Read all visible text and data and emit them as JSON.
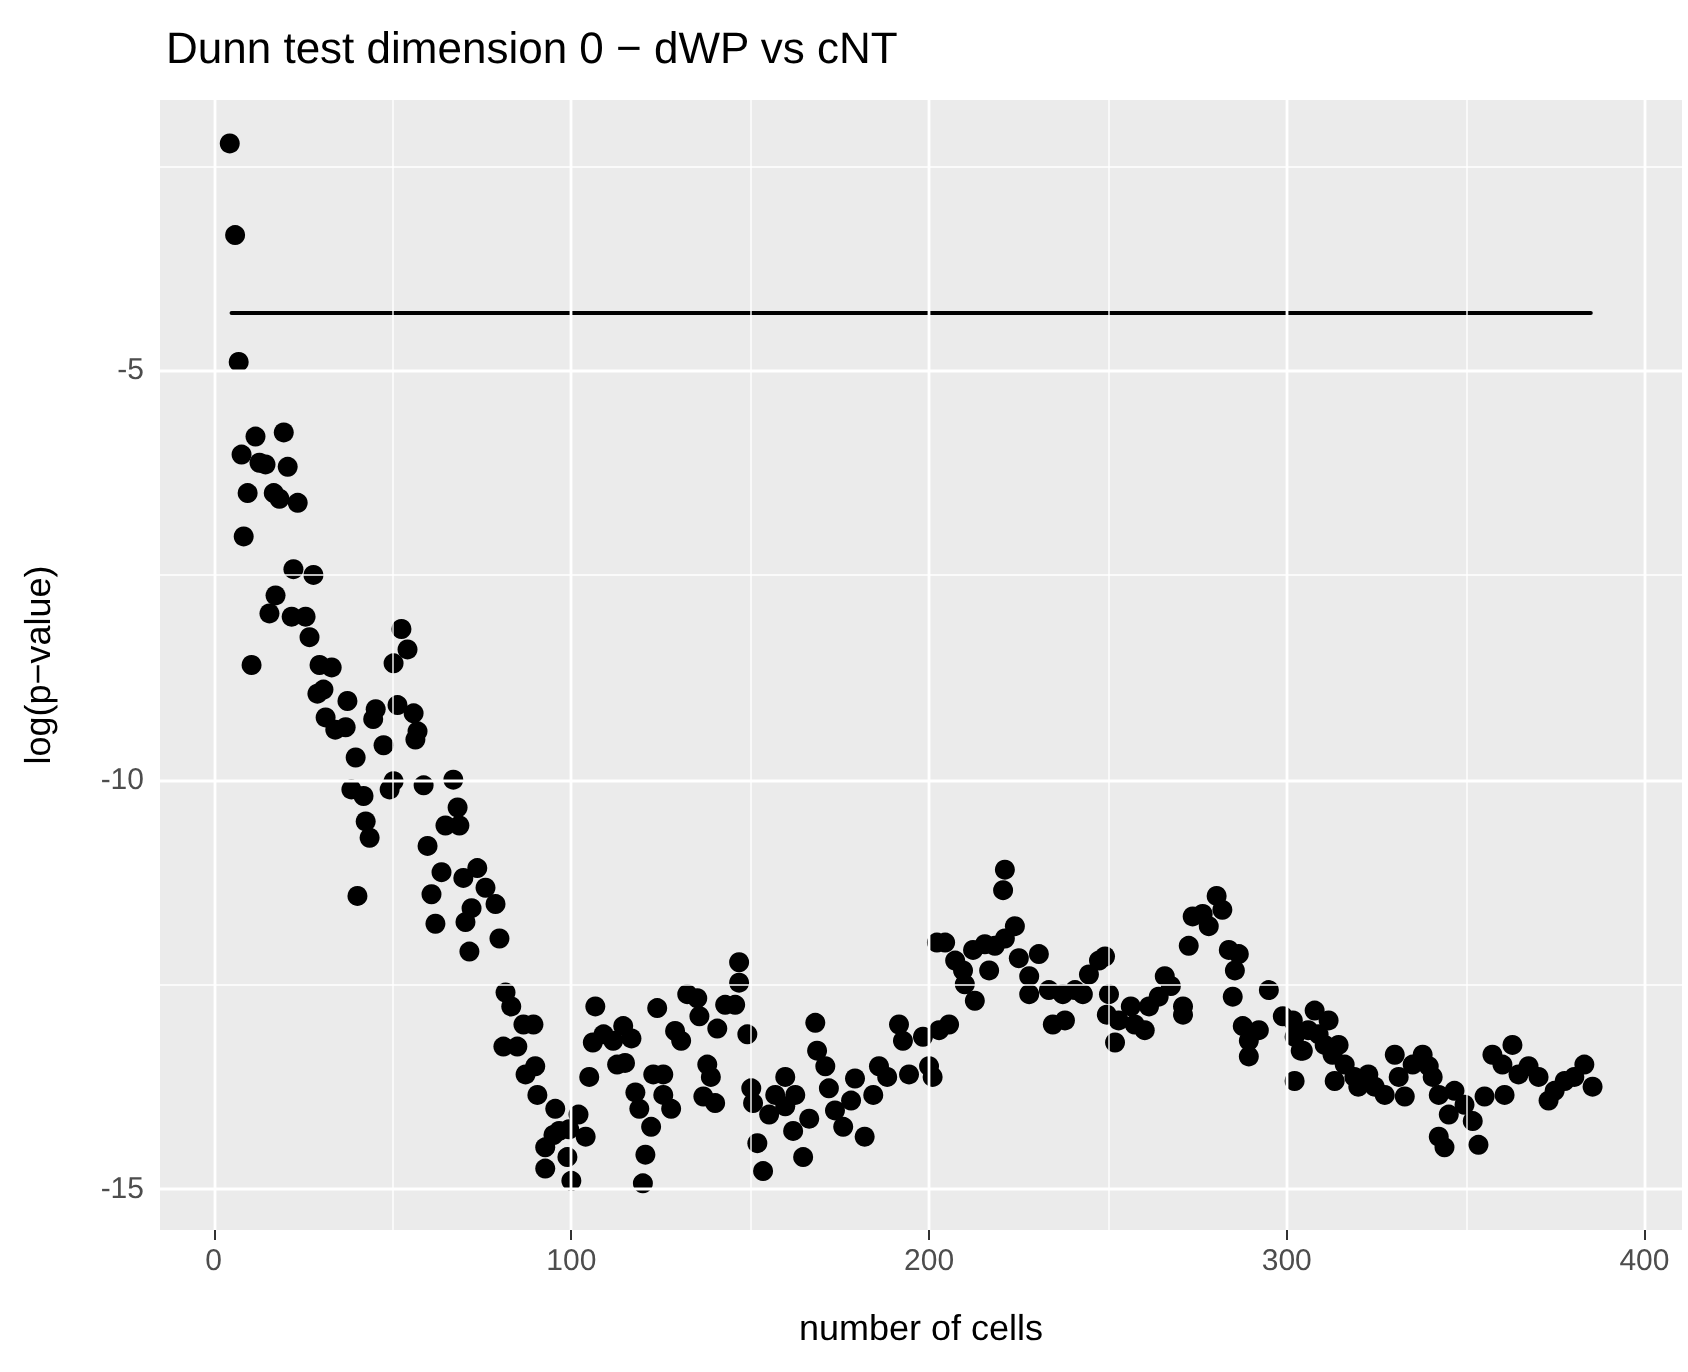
{
  "chart_data": {
    "type": "scatter",
    "title": "Dunn test dimension 0 − dWP vs cNT",
    "xlabel": "number of cells",
    "ylabel": "log(p−value)",
    "xlim": [
      -15,
      410.5
    ],
    "ylim": [
      -15.5,
      -1.7
    ],
    "xticks": [
      0,
      {
        "value": 50,
        "label": null
      },
      100,
      {
        "value": 150,
        "label": null
      },
      200,
      {
        "value": 250,
        "label": null
      },
      300,
      {
        "value": 350,
        "label": null
      },
      400
    ],
    "yticks": [
      -15,
      {
        "value": -12.5,
        "label": null
      },
      -10,
      {
        "value": -7.5,
        "label": null
      },
      -5,
      {
        "value": -2.5,
        "label": null
      }
    ],
    "grid": true,
    "series": [
      {
        "color": "#000000",
        "marker": "circle",
        "x": [
          4.5,
          6,
          7,
          7.8,
          8.4,
          9.5,
          10.6,
          11.7,
          12.8,
          14.5,
          15.6,
          16.8,
          17.3,
          18.4,
          19.6,
          20.7,
          21.8,
          22.3,
          23.5,
          25.7,
          26.8,
          27.9,
          29,
          29.6,
          30.7,
          31.3,
          33,
          34,
          36.9,
          37.4,
          38.5,
          39.7,
          40.2,
          41.9,
          42.5,
          43.6,
          44.6,
          45.3,
          47.5,
          49.2,
          50.3,
          50.3,
          51.4,
          52.5,
          54.2,
          55.9,
          56.4,
          57,
          58.7,
          59.8,
          60.9,
          62,
          63.7,
          64.8,
          67,
          68.2,
          68.7,
          69.8,
          70.4,
          71.5,
          72.1,
          73.7,
          76,
          78.8,
          79.9,
          81,
          81.6,
          83.2,
          84.9,
          86.6,
          87.2,
          89.4,
          89.9,
          90.5,
          92.7,
          92.7,
          95,
          95.5,
          96.6,
          99.4,
          98.9,
          100,
          102,
          104,
          105,
          106,
          106.7,
          109,
          111.7,
          112.8,
          114.5,
          115,
          116.8,
          117.9,
          119,
          120,
          120.7,
          122.3,
          122.9,
          124,
          125.7,
          125.7,
          127.9,
          129,
          130.7,
          132.4,
          135.2,
          135.8,
          136.9,
          138,
          139,
          140.2,
          140.8,
          143,
          145.8,
          146.9,
          146.9,
          149.2,
          150.3,
          150.8,
          152,
          153.6,
          155.3,
          157,
          159.8,
          159.8,
          162,
          162.6,
          164.8,
          166.5,
          168.2,
          168.7,
          171,
          172,
          173.7,
          176,
          178.2,
          179.3,
          182,
          184.4,
          186,
          188.3,
          191.6,
          192.7,
          194.4,
          198.3,
          200,
          201,
          202.2,
          202.8,
          204.5,
          205.6,
          207.3,
          209.5,
          210,
          212.3,
          212.8,
          215.6,
          216.8,
          218.4,
          220.7,
          221.2,
          221.2,
          224,
          225.1,
          228,
          228,
          230.7,
          233.5,
          234.6,
          237.4,
          238,
          240.8,
          243,
          244.7,
          247.5,
          249.2,
          249.7,
          250.3,
          252,
          253,
          256.4,
          257.5,
          260.3,
          261.5,
          264.2,
          265.9,
          267.6,
          271,
          271,
          272.6,
          273.7,
          276.5,
          278.2,
          280.4,
          282,
          283.8,
          284.9,
          285.5,
          286.6,
          287.7,
          289.4,
          289.4,
          292.2,
          295,
          298.9,
          301.7,
          302.2,
          302.2,
          303.9,
          304.5,
          306,
          307.8,
          308.9,
          310.6,
          311.7,
          312.8,
          313.4,
          314.5,
          316.2,
          318.9,
          320,
          322.8,
          324.6,
          327.4,
          330.2,
          331.3,
          333,
          335.2,
          338,
          339.7,
          340.8,
          342.5,
          342.5,
          344.1,
          345.3,
          346.9,
          349.7,
          352,
          353.6,
          355.3,
          357.5,
          360.3,
          360.9,
          363.1,
          364.8,
          367.6,
          370.4,
          373.2,
          374.9,
          377.7,
          380.4,
          383.2,
          385.5
        ],
        "values": [
          -2.23,
          -3.35,
          -4.9,
          -6.03,
          -7.03,
          -6.5,
          -8.6,
          -5.81,
          -6.13,
          -6.15,
          -7.97,
          -6.5,
          -7.75,
          -6.57,
          -5.76,
          -6.18,
          -8.01,
          -7.43,
          -6.62,
          -8.01,
          -8.26,
          -7.5,
          -8.95,
          -8.6,
          -8.9,
          -9.24,
          -8.63,
          -9.39,
          -9.36,
          -9.04,
          -10.12,
          -9.73,
          -11.42,
          -10.2,
          -10.51,
          -10.71,
          -9.26,
          -9.14,
          -9.58,
          -10.12,
          -10.02,
          -8.58,
          -9.09,
          -8.16,
          -8.41,
          -9.19,
          -9.51,
          -9.41,
          -10.07,
          -10.81,
          -11.4,
          -11.76,
          -11.13,
          -10.56,
          -10,
          -10.34,
          -10.56,
          -11.2,
          -11.74,
          -12.1,
          -11.57,
          -11.08,
          -11.32,
          -11.52,
          -11.94,
          -13.26,
          -12.6,
          -12.77,
          -13.26,
          -12.99,
          -13.6,
          -12.99,
          -13.5,
          -13.85,
          -14.49,
          -14.75,
          -14.34,
          -14.02,
          -14.29,
          -14.27,
          -14.61,
          -14.9,
          -14.09,
          -14.36,
          -13.63,
          -13.21,
          -12.77,
          -13.11,
          -13.19,
          -13.48,
          -13.01,
          -13.46,
          -13.16,
          -13.82,
          -14.02,
          -14.93,
          -14.58,
          -14.24,
          -13.6,
          -12.79,
          -13.6,
          -13.85,
          -14.02,
          -13.07,
          -13.19,
          -12.62,
          -12.67,
          -12.89,
          -13.87,
          -13.48,
          -13.63,
          -13.95,
          -13.04,
          -12.75,
          -12.75,
          -12.48,
          -12.23,
          -13.11,
          -13.77,
          -13.95,
          -14.44,
          -14.78,
          -14.09,
          -13.85,
          -13.63,
          -13.99,
          -14.29,
          -13.85,
          -14.61,
          -14.14,
          -12.97,
          -13.31,
          -13.5,
          -13.77,
          -14.04,
          -14.24,
          -13.92,
          -13.65,
          -14.36,
          -13.85,
          -13.5,
          -13.63,
          -12.99,
          -13.19,
          -13.6,
          -13.14,
          -13.5,
          -13.63,
          -11.99,
          -13.06,
          -11.99,
          -12.99,
          -12.21,
          -12.33,
          -12.5,
          -12.08,
          -12.7,
          -12.01,
          -12.33,
          -12.03,
          -11.35,
          -11.1,
          -11.94,
          -11.79,
          -12.18,
          -12.4,
          -12.62,
          -12.13,
          -12.57,
          -12.99,
          -12.62,
          -12.94,
          -12.57,
          -12.62,
          -12.38,
          -12.21,
          -12.16,
          -12.87,
          -12.62,
          -13.21,
          -12.94,
          -12.77,
          -12.99,
          -13.06,
          -12.77,
          -12.65,
          -12.4,
          -12.52,
          -12.77,
          -12.87,
          -12.03,
          -11.67,
          -11.64,
          -11.79,
          -11.42,
          -11.59,
          -12.08,
          -12.65,
          -12.33,
          -12.13,
          -13.01,
          -13.19,
          -13.38,
          -13.06,
          -12.57,
          -12.89,
          -12.94,
          -13.14,
          -13.68,
          -13.31,
          -13.31,
          -13.06,
          -12.82,
          -13.11,
          -13.24,
          -12.94,
          -13.36,
          -13.68,
          -13.24,
          -13.48,
          -13.63,
          -13.75,
          -13.6,
          -13.75,
          -13.85,
          -13.36,
          -13.63,
          -13.87,
          -13.48,
          -13.36,
          -13.5,
          -13.63,
          -13.85,
          -14.36,
          -14.49,
          -14.09,
          -13.8,
          -13.97,
          -14.17,
          -14.46,
          -13.87,
          -13.36,
          -13.48,
          -13.85,
          -13.24,
          -13.6,
          -13.5,
          -13.63,
          -13.92,
          -13.8,
          -13.68,
          -13.63,
          -13.48,
          -13.75
        ]
      },
      {
        "type": "line",
        "color": "#000000",
        "marker": "none",
        "x": [
          5,
          385
        ],
        "values": [
          -4.3,
          -4.3
        ]
      }
    ]
  }
}
